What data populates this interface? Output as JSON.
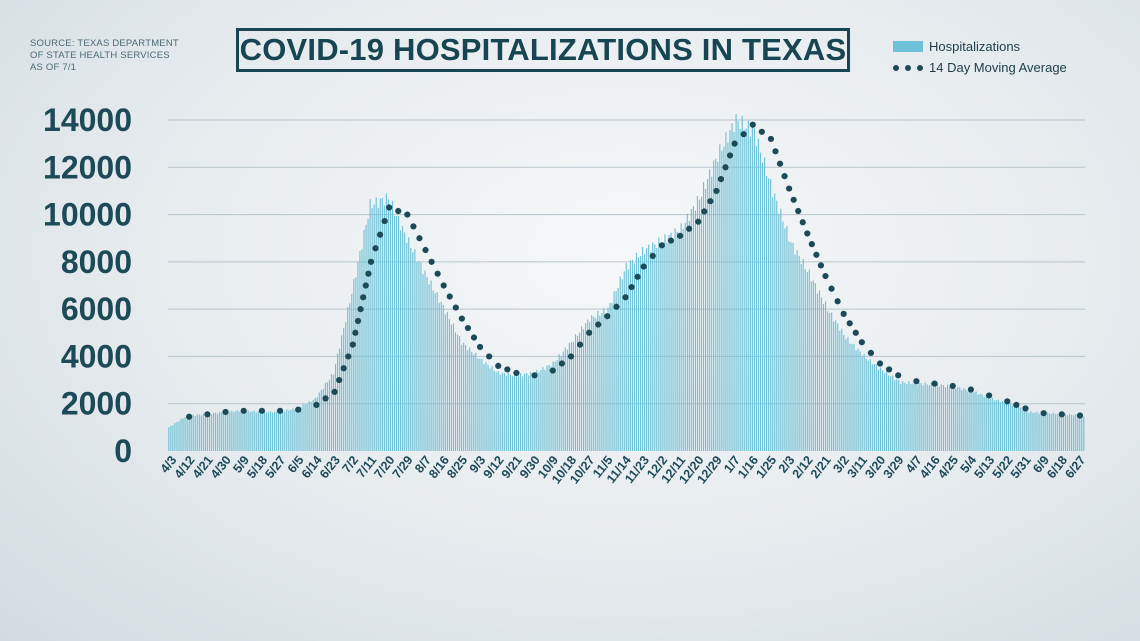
{
  "source": {
    "lines": [
      "SOURCE: TEXAS DEPARTMENT",
      "OF STATE HEALTH SERVICES",
      "AS OF 7/1"
    ]
  },
  "colors": {
    "bars": "#6ec1d6",
    "dots": "#1c4a57",
    "title": "#174552",
    "axis_text": "#1c4a57",
    "grid": "#b7c5cb"
  },
  "chart_data": {
    "type": "bar",
    "title": "COVID-19 HOSPITALIZATIONS IN TEXAS",
    "xlabel": "",
    "ylabel": "",
    "ylim": [
      0,
      14000
    ],
    "yticks": [
      0,
      2000,
      4000,
      6000,
      8000,
      10000,
      12000,
      14000
    ],
    "grid": true,
    "legend_position": "top-right",
    "categories": [
      "4/3",
      "4/12",
      "4/21",
      "4/30",
      "5/9",
      "5/18",
      "5/27",
      "6/5",
      "6/14",
      "6/23",
      "7/2",
      "7/11",
      "7/20",
      "7/29",
      "8/7",
      "8/16",
      "8/25",
      "9/3",
      "9/12",
      "9/21",
      "9/30",
      "10/9",
      "10/18",
      "10/27",
      "11/5",
      "11/14",
      "11/23",
      "12/2",
      "12/11",
      "12/20",
      "12/29",
      "1/7",
      "1/16",
      "1/25",
      "2/3",
      "2/12",
      "2/21",
      "3/2",
      "3/11",
      "3/20",
      "3/29",
      "4/7",
      "4/16",
      "4/25",
      "5/4",
      "5/13",
      "5/22",
      "5/31",
      "6/9",
      "6/18",
      "6/27"
    ],
    "series": [
      {
        "name": "Hospitalizations",
        "kind": "bar",
        "values": [
          1000,
          1500,
          1550,
          1650,
          1700,
          1650,
          1650,
          1800,
          2200,
          3300,
          6700,
          10400,
          10700,
          9000,
          7500,
          6100,
          4600,
          3900,
          3300,
          3200,
          3300,
          3700,
          4600,
          5600,
          6000,
          7800,
          8500,
          8900,
          9400,
          10700,
          12500,
          14000,
          13500,
          11000,
          8800,
          7500,
          6000,
          4800,
          4000,
          3400,
          2900,
          2850,
          2800,
          2700,
          2500,
          2200,
          2000,
          1650,
          1600,
          1550,
          1500
        ]
      },
      {
        "name": "14 Day Moving Average",
        "kind": "dotted-line",
        "values": [
          1400,
          1450,
          1550,
          1650,
          1700,
          1700,
          1700,
          1750,
          1950,
          2500,
          4500,
          8000,
          10300,
          10000,
          8500,
          7000,
          5600,
          4400,
          3600,
          3300,
          3200,
          3400,
          4000,
          5000,
          5700,
          6500,
          7800,
          8700,
          9100,
          9700,
          11000,
          13000,
          13800,
          13200,
          11100,
          9200,
          7400,
          5800,
          4600,
          3700,
          3200,
          2950,
          2850,
          2750,
          2600,
          2350,
          2100,
          1800,
          1600,
          1550,
          1500
        ]
      }
    ]
  }
}
